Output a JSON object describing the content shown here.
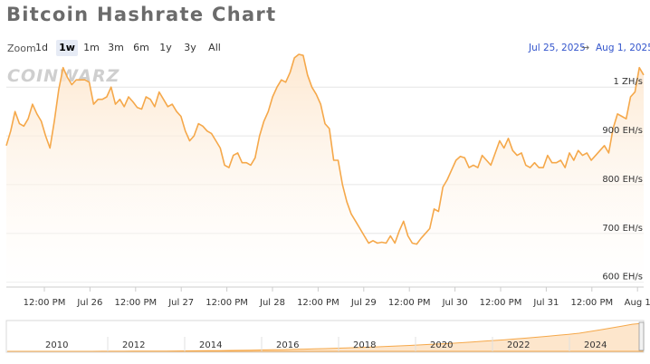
{
  "header": {
    "title": "Bitcoin Hashrate Chart"
  },
  "zoom": {
    "label": "Zoom",
    "options": [
      "1d",
      "1w",
      "1m",
      "3m",
      "6m",
      "1y",
      "3y",
      "All"
    ],
    "active": "1w"
  },
  "range": {
    "from": "Jul 25, 2025",
    "arrow": "→",
    "to": "Aug 1, 2025"
  },
  "watermark": {
    "text": "COINWARZ"
  },
  "colors": {
    "line": "#f5a84a",
    "fill_top": "#fde6cc",
    "fill_bottom": "#ffffff",
    "grid": "#e6e6e6"
  },
  "chart_data": {
    "type": "area",
    "title": "Bitcoin Hashrate Chart",
    "ylabel": "",
    "xlabel": "",
    "y_unit": "EH/s",
    "ylim": [
      590,
      1045
    ],
    "y_ticks": [
      {
        "value": 600,
        "label": "600 EH/s"
      },
      {
        "value": 700,
        "label": "700 EH/s"
      },
      {
        "value": 800,
        "label": "800 EH/s"
      },
      {
        "value": 900,
        "label": "900 EH/s"
      },
      {
        "value": 1000,
        "label": "1 ZH/s"
      }
    ],
    "x_ticks": [
      "12:00 PM",
      "Jul 26",
      "12:00 PM",
      "Jul 27",
      "12:00 PM",
      "Jul 28",
      "12:00 PM",
      "Jul 29",
      "12:00 PM",
      "Jul 30",
      "12:00 PM",
      "Jul 31",
      "12:00 PM",
      "Aug 1"
    ],
    "grid": true,
    "series": [
      {
        "values": [
          880,
          910,
          950,
          925,
          920,
          935,
          965,
          945,
          930,
          900,
          875,
          930,
          995,
          1040,
          1020,
          1005,
          1015,
          1015,
          1015,
          1010,
          965,
          975,
          975,
          980,
          1000,
          965,
          975,
          960,
          980,
          970,
          958,
          955,
          980,
          975,
          960,
          990,
          975,
          960,
          965,
          950,
          940,
          910,
          890,
          900,
          925,
          920,
          910,
          905,
          890,
          875,
          840,
          835,
          860,
          865,
          845,
          845,
          840,
          855,
          900,
          930,
          950,
          980,
          1000,
          1015,
          1010,
          1030,
          1060,
          1072,
          1065,
          1025,
          1000,
          985,
          965,
          925,
          915,
          850,
          850,
          800,
          765,
          740,
          725,
          710,
          695,
          680,
          685,
          680,
          682,
          680,
          695,
          680,
          705,
          725,
          695,
          680,
          678,
          690,
          700,
          710,
          750,
          745,
          795,
          810,
          830,
          850,
          858,
          855,
          835,
          840,
          835,
          860,
          850,
          840,
          865,
          890,
          875,
          895,
          870,
          860,
          865,
          840,
          835,
          845,
          835,
          835,
          860,
          845,
          845,
          850,
          835,
          865,
          850,
          870,
          860,
          865,
          850,
          860,
          870,
          880,
          865,
          915,
          945,
          940,
          935,
          980,
          990,
          1040,
          1025
        ]
      }
    ],
    "navigator": {
      "labels": [
        "2010",
        "2012",
        "2014",
        "2016",
        "2018",
        "2020",
        "2022",
        "2024"
      ]
    }
  }
}
